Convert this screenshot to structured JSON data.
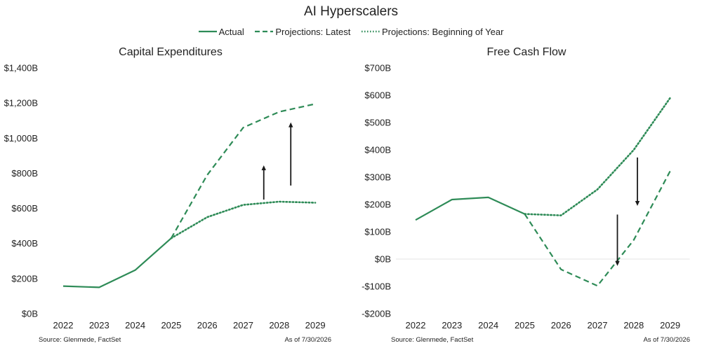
{
  "title": "AI Hyperscalers",
  "legend": {
    "actual": "Actual",
    "latest": "Projections: Latest",
    "boy": "Projections: Beginning of Year"
  },
  "colors": {
    "line": "#2e8b57",
    "arrow": "#1a1a1a",
    "grid": "#e6e6e6"
  },
  "chart_data": [
    {
      "type": "line",
      "title": "Capital Expenditures",
      "x": [
        "2022",
        "2023",
        "2024",
        "2025",
        "2026",
        "2027",
        "2028",
        "2029"
      ],
      "ylim": [
        0,
        1400
      ],
      "yticks": [
        0,
        200,
        400,
        600,
        800,
        1000,
        1200,
        1400
      ],
      "ytick_labels": [
        "$0B",
        "$200B",
        "$400B",
        "$600B",
        "$800B",
        "$1,000B",
        "$1,200B",
        "$1,400B"
      ],
      "series": [
        {
          "name": "Actual",
          "style": "solid",
          "x": [
            "2022",
            "2023",
            "2024",
            "2025"
          ],
          "values": [
            157,
            150,
            248,
            430
          ]
        },
        {
          "name": "Projections: Latest",
          "style": "dashed",
          "x": [
            "2025",
            "2026",
            "2027",
            "2028",
            "2029"
          ],
          "values": [
            430,
            790,
            1060,
            1150,
            1195
          ]
        },
        {
          "name": "Projections: Beginning of Year",
          "style": "dotted",
          "x": [
            "2025",
            "2026",
            "2027",
            "2028",
            "2029"
          ],
          "values": [
            430,
            550,
            620,
            638,
            632
          ]
        }
      ],
      "arrows": [
        {
          "x": 6.57,
          "from": 650,
          "to": 845,
          "direction": "up"
        },
        {
          "x": 7.32,
          "from": 730,
          "to": 1090,
          "direction": "up"
        }
      ],
      "source": "Source: Glenmede, FactSet",
      "asof": "As of 7/30/2026"
    },
    {
      "type": "line",
      "title": "Free Cash Flow",
      "x": [
        "2022",
        "2023",
        "2024",
        "2025",
        "2026",
        "2027",
        "2028",
        "2029"
      ],
      "ylim": [
        -200,
        700
      ],
      "yticks": [
        -200,
        -100,
        0,
        100,
        200,
        300,
        400,
        500,
        600,
        700
      ],
      "ytick_labels": [
        "-$200B",
        "-$100B",
        "$0B",
        "$100B",
        "$200B",
        "$300B",
        "$400B",
        "$500B",
        "$600B",
        "$700B"
      ],
      "zero_line": true,
      "series": [
        {
          "name": "Actual",
          "style": "solid",
          "x": [
            "2022",
            "2023",
            "2024",
            "2025"
          ],
          "values": [
            143,
            218,
            226,
            165
          ]
        },
        {
          "name": "Projections: Latest",
          "style": "dashed",
          "x": [
            "2025",
            "2026",
            "2027",
            "2028",
            "2029"
          ],
          "values": [
            165,
            -38,
            -98,
            70,
            322
          ]
        },
        {
          "name": "Projections: Beginning of Year",
          "style": "dotted",
          "x": [
            "2025",
            "2026",
            "2027",
            "2028",
            "2029"
          ],
          "values": [
            165,
            160,
            255,
            400,
            590
          ]
        }
      ],
      "arrows": [
        {
          "x": 6.55,
          "from": 163,
          "to": -25,
          "direction": "down"
        },
        {
          "x": 7.1,
          "from": 372,
          "to": 195,
          "direction": "down"
        }
      ],
      "source": "Source: Glenmede, FactSet",
      "asof": "As of 7/30/2026"
    }
  ]
}
